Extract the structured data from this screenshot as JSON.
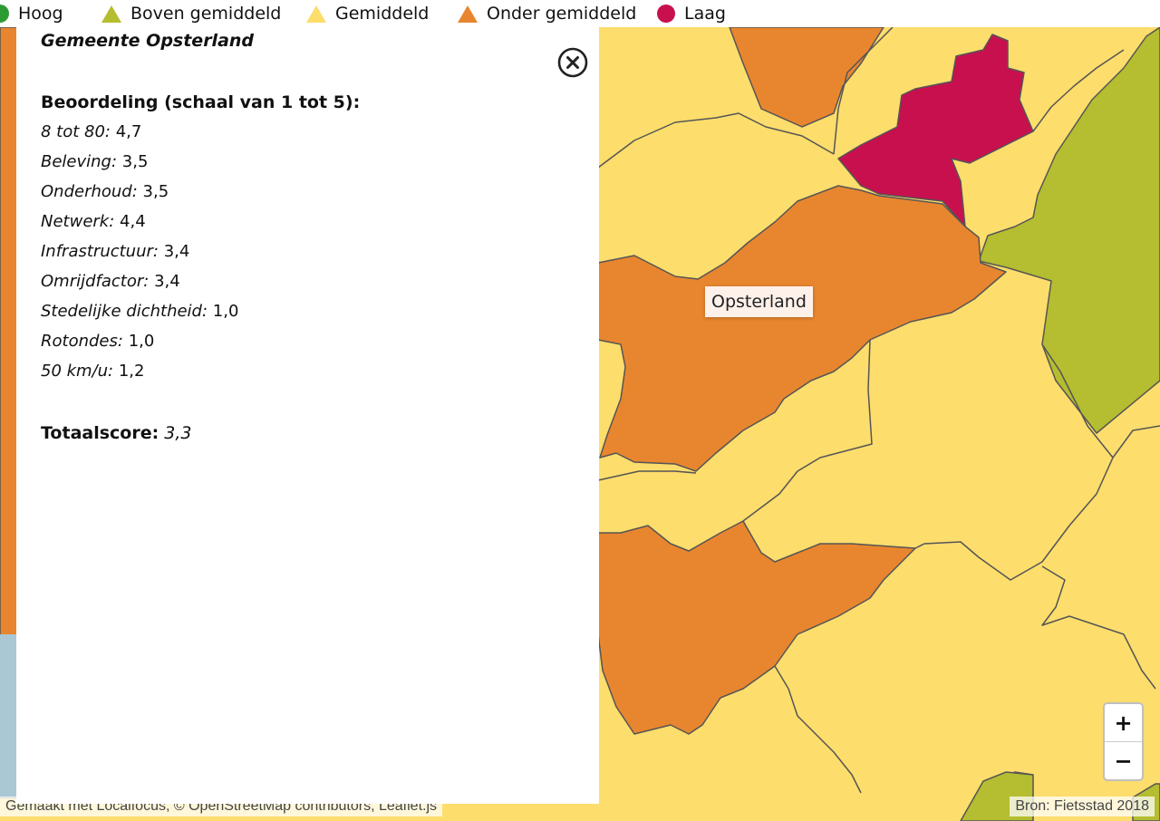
{
  "legend": {
    "items": [
      {
        "label": "Hoog",
        "marker": "circle",
        "color": "#2e9b32"
      },
      {
        "label": "Boven gemiddeld",
        "marker": "triangle",
        "color": "#b5bd30"
      },
      {
        "label": "Gemiddeld",
        "marker": "triangle",
        "color": "#fddd6c"
      },
      {
        "label": "Onder gemiddeld",
        "marker": "triangle",
        "color": "#e8862f"
      },
      {
        "label": "Laag",
        "marker": "circle",
        "color": "#c8104f"
      }
    ]
  },
  "panel": {
    "title": "Gemeente Opsterland",
    "heading": "Beoordeling (schaal van 1 tot 5):",
    "ratings": [
      {
        "label": "8 tot 80:",
        "value": "4,7"
      },
      {
        "label": "Beleving:",
        "value": "3,5"
      },
      {
        "label": "Onderhoud:",
        "value": "3,5"
      },
      {
        "label": "Netwerk:",
        "value": "4,4"
      },
      {
        "label": "Infrastructuur:",
        "value": "3,4"
      },
      {
        "label": "Omrijdfactor:",
        "value": "3,4"
      },
      {
        "label": "Stedelijke dichtheid:",
        "value": "1,0"
      },
      {
        "label": "Rotondes:",
        "value": "1,0"
      },
      {
        "label": "50 km/u:",
        "value": "1,2"
      }
    ],
    "total_label": "Totaalscore:",
    "total_value": "3,3",
    "close_icon": "close-circle-icon"
  },
  "map": {
    "tooltip": "Opsterland",
    "zoom_in": "+",
    "zoom_out": "−",
    "colors": {
      "laag": "#c8104f",
      "onder_gemiddeld": "#e8862f",
      "gemiddeld": "#fddd6c",
      "boven_gemiddeld": "#b5bd30",
      "water": "#aac8d3",
      "border": "#555555"
    }
  },
  "attribution": {
    "left": "Gemaakt met Localfocus, © OpenStreetMap contributors, Leaflet.js",
    "right": "Bron: Fietsstad 2018"
  }
}
